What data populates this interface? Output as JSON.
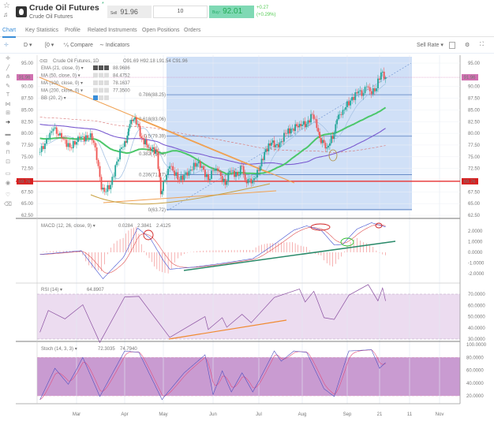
{
  "header": {
    "title": "Crude Oil Futures",
    "subtitle": "Crude Oil Futures",
    "sell_label": "Sell",
    "sell_price": "91.96",
    "quantity": "10",
    "buy_label": "Buy↑",
    "buy_price": "92.01",
    "change": "+0.27",
    "change_pct": "(+0.29%)",
    "colors": {
      "buy": "#7fd9b4",
      "positive": "#55cc55"
    }
  },
  "tabs": [
    {
      "label": "Chart",
      "active": true
    },
    {
      "label": "Key Statistics"
    },
    {
      "label": "Profile"
    },
    {
      "label": "Related Instruments"
    },
    {
      "label": "Open Positions"
    },
    {
      "label": "Orders"
    }
  ],
  "toolbar": {
    "interval": "D",
    "chart_type": "[0",
    "compare": "Compare",
    "indicators": "Indicators",
    "rate": "Sell Rate"
  },
  "left_tools": [
    "crosshair-icon",
    "trend-line-icon",
    "pitchfork-icon",
    "brush-icon",
    "text-icon",
    "pattern-icon",
    "measure-icon",
    "arrow-icon",
    "ruler-icon",
    "zoom-icon",
    "magnet-icon",
    "lock-icon",
    "visibility-icon",
    "eye-icon",
    "favorite-icon",
    "trash-icon"
  ],
  "legend": {
    "symbol": "Crude Oil Futures, 1D",
    "ohlc": "O91.69  H92.18  L91.54  C91.96",
    "studies": [
      {
        "label": "EMA (21, close, 0)",
        "value": "88.9686",
        "color": "#9ab8d8"
      },
      {
        "label": "MA (50, close, 0)",
        "value": "84.4752",
        "color": "#4cc76a"
      },
      {
        "label": "MA (100, close, 0)",
        "value": "78.1637",
        "color": "#7a5bd0"
      },
      {
        "label": "MA (200, close, 0)",
        "value": "77.3500",
        "color": "#e06060"
      },
      {
        "label": "BB (20, 2)",
        "value": "",
        "color": "#3a8ed8"
      }
    ]
  },
  "chart_data": {
    "type": "candlestick",
    "price_axis": [
      "95.00",
      "90.00",
      "87.50",
      "85.00",
      "82.50",
      "80.00",
      "77.50",
      "75.00",
      "72.50",
      "67.50",
      "65.00",
      "62.50"
    ],
    "ylim": [
      62.5,
      95
    ],
    "last_price": "91.96",
    "support_level": "69.76",
    "x_ticks": [
      "Mar",
      "Apr",
      "May",
      "Jun",
      "Jul",
      "Aug",
      "Sep",
      "21",
      "11",
      "Nov"
    ],
    "closes": [
      [
        "Feb 7",
        76
      ],
      [
        "Feb 12",
        79
      ],
      [
        "Feb 15",
        81
      ],
      [
        "Feb 20",
        79
      ],
      [
        "Feb 25",
        77
      ],
      [
        "Mar 3",
        79
      ],
      [
        "Mar 8",
        79
      ],
      [
        "Mar 10",
        80
      ],
      [
        "Mar 13",
        77
      ],
      [
        "Mar 15",
        73
      ],
      [
        "Mar 17",
        68
      ],
      [
        "Mar 19",
        67.5
      ],
      [
        "Mar 23",
        69
      ],
      [
        "Mar 27",
        74
      ],
      [
        "Mar 30",
        77
      ],
      [
        "Apr 2",
        78
      ],
      [
        "Apr 5",
        82
      ],
      [
        "Apr 8",
        83
      ],
      [
        "Apr 11",
        82
      ],
      [
        "Apr 14",
        79
      ],
      [
        "Apr 20",
        77
      ],
      [
        "Apr 26",
        76
      ],
      [
        "Apr 29",
        67
      ],
      [
        "May 2",
        70
      ],
      [
        "May 5",
        73
      ],
      [
        "May 11",
        70
      ],
      [
        "May 17",
        72
      ],
      [
        "May 23",
        74
      ],
      [
        "May 29",
        70
      ],
      [
        "Jun 1",
        72
      ],
      [
        "Jun 4",
        72
      ],
      [
        "Jun 9",
        69
      ],
      [
        "Jun 12",
        72
      ],
      [
        "Jun 17",
        71
      ],
      [
        "Jun 20",
        73
      ],
      [
        "Jun 22",
        70
      ],
      [
        "Jun 27",
        70
      ],
      [
        "Jul 1",
        72
      ],
      [
        "Jul 5",
        76
      ],
      [
        "Jul 10",
        78
      ],
      [
        "Jul 15",
        77
      ],
      [
        "Jul 20",
        80
      ],
      [
        "Jul 25",
        81
      ],
      [
        "Jul 30",
        82
      ],
      [
        "Aug 4",
        82
      ],
      [
        "Aug 8",
        84
      ],
      [
        "Aug 10",
        83
      ],
      [
        "Aug 13",
        79
      ],
      [
        "Aug 18",
        77
      ],
      [
        "Aug 23",
        80
      ],
      [
        "Aug 25",
        83
      ],
      [
        "Aug 29",
        85
      ],
      [
        "Sep 3",
        87
      ],
      [
        "Sep 8",
        89
      ],
      [
        "Sep 10",
        88
      ],
      [
        "Sep 13",
        90
      ],
      [
        "Sep 15",
        89
      ],
      [
        "Sep 18",
        89
      ],
      [
        "Sep 22",
        93
      ],
      [
        "Sep 25",
        91.96
      ]
    ],
    "fibonacci": [
      "0.786(88.25)",
      "0.618(83.06)",
      "0.5(79.39)",
      "0.382(75.64)",
      "0.236(71.17)",
      "0(63.72)"
    ],
    "fib_levels": [
      88.25,
      83.06,
      79.39,
      75.64,
      71.17,
      63.72
    ],
    "macd": {
      "label": "MACD (12, 26, close, 9)",
      "values_text": [
        "0.0284",
        "2.3841",
        "2.4125"
      ],
      "axis": [
        "2.0000",
        "1.0000",
        "0.0000",
        "-1.0000",
        "-2.0000"
      ],
      "line": [
        [
          "Feb 7",
          -0.2
        ],
        [
          "Mar 4",
          0.15
        ],
        [
          "Mar 18",
          -2.5
        ],
        [
          "Mar 31",
          -0.5
        ],
        [
          "Apr 11",
          2.3
        ],
        [
          "Apr 21",
          1.3
        ],
        [
          "May 5",
          -1.6
        ],
        [
          "May 20",
          -1.4
        ],
        [
          "Jun 9",
          -1.0
        ],
        [
          "Jun 27",
          -0.6
        ],
        [
          "Jul 12",
          0.75
        ],
        [
          "Jul 26",
          2.1
        ],
        [
          "Aug 4",
          2.5
        ],
        [
          "Aug 14",
          2.1
        ],
        [
          "Aug 23",
          0.7
        ],
        [
          "Aug 29",
          0.75
        ],
        [
          "Sep 7",
          2.2
        ],
        [
          "Sep 16",
          2.8
        ],
        [
          "Sep 25",
          2.4
        ]
      ]
    },
    "rsi": {
      "label": "RSI (14)",
      "value_text": "64.8907",
      "axis": [
        "70.0000",
        "60.0000",
        "50.0000",
        "40.0000",
        "30.0000"
      ],
      "band": [
        30,
        70
      ],
      "line": [
        [
          "Feb 7",
          37
        ],
        [
          "Feb 12",
          54
        ],
        [
          "Feb 22",
          49
        ],
        [
          "Mar 5",
          59
        ],
        [
          "Mar 16",
          28
        ],
        [
          "Apr 1",
          66
        ],
        [
          "Apr 12",
          69
        ],
        [
          "May 5",
          30
        ],
        [
          "May 27",
          51
        ],
        [
          "May 29",
          37
        ],
        [
          "Jun 7",
          50
        ],
        [
          "Jun 10",
          39
        ],
        [
          "Jun 20",
          53
        ],
        [
          "Jun 26",
          43
        ],
        [
          "Jul 12",
          68
        ],
        [
          "Jul 30",
          73
        ],
        [
          "Aug 3",
          64
        ],
        [
          "Aug 9",
          71
        ],
        [
          "Aug 16",
          50
        ],
        [
          "Aug 23",
          46
        ],
        [
          "Sep 2",
          70
        ],
        [
          "Sep 14",
          77
        ],
        [
          "Sep 20",
          65
        ],
        [
          "Sep 23",
          74
        ],
        [
          "Sep 25",
          64.9
        ]
      ]
    },
    "stoch": {
      "label": "Stoch (14, 3, 3)",
      "values_text": [
        "72.3035",
        "74.7940"
      ],
      "axis": [
        "100.0000",
        "80.0000",
        "60.0000",
        "40.0000",
        "20.0000"
      ],
      "band": [
        20,
        80
      ],
      "line": [
        [
          "Feb 7",
          14
        ],
        [
          "Feb 16",
          63
        ],
        [
          "Feb 24",
          38
        ],
        [
          "Mar 5",
          80
        ],
        [
          "Mar 16",
          19
        ],
        [
          "Apr 1",
          90
        ],
        [
          "Apr 12",
          88
        ],
        [
          "Apr 30",
          14
        ],
        [
          "May 14",
          56
        ],
        [
          "May 27",
          84
        ],
        [
          "Jun 1",
          22
        ],
        [
          "Jun 7",
          59
        ],
        [
          "Jun 13",
          26
        ],
        [
          "Jun 20",
          56
        ],
        [
          "Jun 27",
          26
        ],
        [
          "Jul 12",
          90
        ],
        [
          "Jul 17",
          74
        ],
        [
          "Jul 26",
          90
        ],
        [
          "Aug 4",
          88
        ],
        [
          "Aug 16",
          31
        ],
        [
          "Aug 23",
          19
        ],
        [
          "Sep 2",
          90
        ],
        [
          "Sep 16",
          92
        ],
        [
          "Sep 21",
          63
        ],
        [
          "Sep 25",
          72
        ]
      ]
    },
    "colors": {
      "up": "#26a69a",
      "down": "#ef5350",
      "support": "#e84040",
      "fib_box": "#8fb3ea",
      "trendline": "#f0a050",
      "macd_trend": "#2a8a6a"
    }
  }
}
